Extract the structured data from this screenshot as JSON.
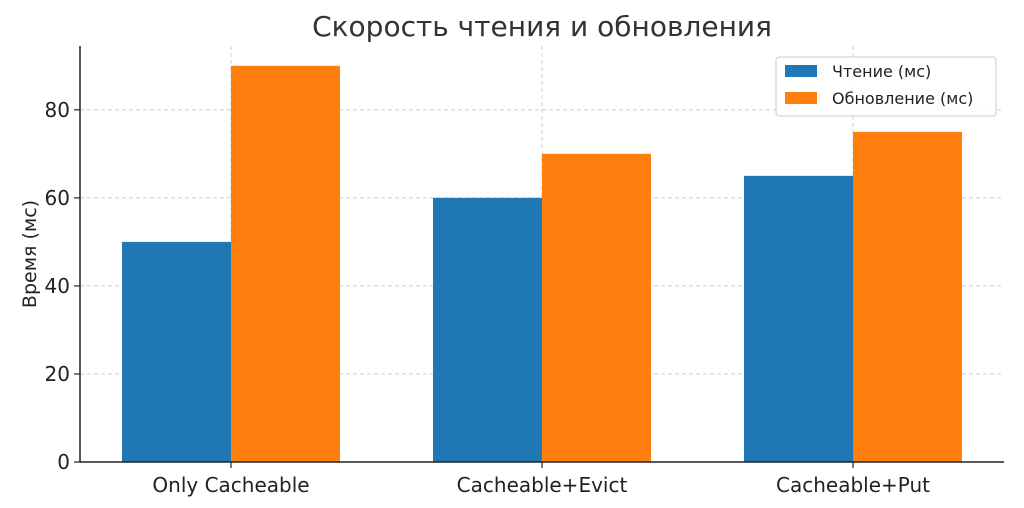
{
  "chart_data": {
    "type": "bar",
    "title": "Скорость чтения и обновления",
    "xlabel": "",
    "ylabel": "Время (мс)",
    "categories": [
      "Only Cacheable",
      "Cacheable+Evict",
      "Cacheable+Put"
    ],
    "series": [
      {
        "name": "Чтение (мс)",
        "values": [
          50,
          60,
          65
        ],
        "color": "#1f77b4"
      },
      {
        "name": "Обновление (мс)",
        "values": [
          90,
          70,
          75
        ],
        "color": "#ff7f0e"
      }
    ],
    "ylim": [
      0,
      94.5
    ],
    "yticks": [
      "0",
      "20",
      "40",
      "60",
      "80"
    ],
    "grid": true,
    "legend_position": "top-right"
  }
}
